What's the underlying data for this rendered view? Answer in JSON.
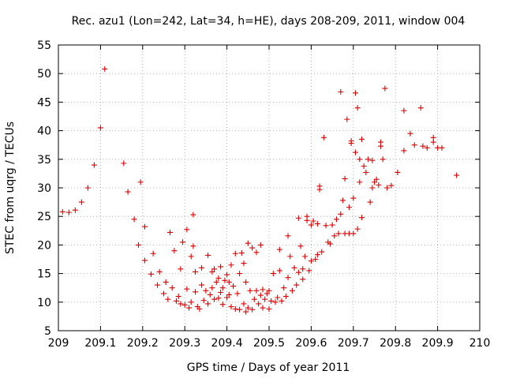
{
  "chart_data": {
    "type": "scatter",
    "title": "Rec. azu1 (Lon=242, Lat=34, h=HE), days 208-209, 2011, window 004",
    "xlabel": "GPS time / Days of year 2011",
    "ylabel": "STEC from uqrg / TECUs",
    "xlim": [
      209,
      210
    ],
    "ylim": [
      5,
      55
    ],
    "xticks": [
      209,
      209.1,
      209.2,
      209.3,
      209.4,
      209.5,
      209.6,
      209.7,
      209.8,
      209.9,
      210
    ],
    "xtick_labels": [
      "209",
      "209.1",
      "209.2",
      "209.3",
      "209.4",
      "209.5",
      "209.6",
      "209.7",
      "209.8",
      "209.9",
      "210"
    ],
    "yticks": [
      5,
      10,
      15,
      20,
      25,
      30,
      35,
      40,
      45,
      50,
      55
    ],
    "ytick_labels": [
      "5",
      "10",
      "15",
      "20",
      "25",
      "30",
      "35",
      "40",
      "45",
      "50",
      "55"
    ],
    "grid": true,
    "marker": "+",
    "color": "#dd0000",
    "series": [
      {
        "points": [
          [
            209.01,
            25.8
          ],
          [
            209.025,
            25.7
          ],
          [
            209.04,
            26.1
          ],
          [
            209.055,
            27.5
          ],
          [
            209.07,
            30.0
          ],
          [
            209.085,
            34.0
          ],
          [
            209.1,
            40.5
          ],
          [
            209.11,
            50.8
          ],
          [
            209.155,
            34.3
          ],
          [
            209.165,
            29.3
          ],
          [
            209.18,
            24.5
          ],
          [
            209.19,
            20.0
          ],
          [
            209.195,
            31.0
          ],
          [
            209.205,
            17.3
          ],
          [
            209.205,
            23.2
          ],
          [
            209.22,
            14.9
          ],
          [
            209.225,
            18.5
          ],
          [
            209.235,
            13.0
          ],
          [
            209.24,
            15.3
          ],
          [
            209.25,
            11.5
          ],
          [
            209.255,
            13.5
          ],
          [
            209.26,
            10.5
          ],
          [
            209.265,
            22.2
          ],
          [
            209.27,
            12.5
          ],
          [
            209.275,
            19.0
          ],
          [
            209.28,
            10.2
          ],
          [
            209.285,
            11.0
          ],
          [
            209.29,
            15.8
          ],
          [
            209.29,
            9.7
          ],
          [
            209.295,
            20.5
          ],
          [
            209.3,
            9.5
          ],
          [
            209.305,
            12.3
          ],
          [
            209.305,
            22.7
          ],
          [
            209.31,
            9.0
          ],
          [
            209.315,
            10.0
          ],
          [
            209.315,
            18.0
          ],
          [
            209.32,
            19.8
          ],
          [
            209.32,
            25.3
          ],
          [
            209.325,
            11.8
          ],
          [
            209.325,
            15.3
          ],
          [
            209.33,
            9.2
          ],
          [
            209.335,
            8.8
          ],
          [
            209.34,
            13.0
          ],
          [
            209.34,
            16.0
          ],
          [
            209.345,
            10.3
          ],
          [
            209.35,
            12.0
          ],
          [
            209.355,
            9.7
          ],
          [
            209.355,
            18.2
          ],
          [
            209.36,
            11.3
          ],
          [
            209.365,
            12.5
          ],
          [
            209.365,
            15.3
          ],
          [
            209.37,
            10.5
          ],
          [
            209.37,
            15.8
          ],
          [
            209.375,
            13.5
          ],
          [
            209.38,
            10.7
          ],
          [
            209.38,
            14.2
          ],
          [
            209.385,
            11.7
          ],
          [
            209.385,
            16.2
          ],
          [
            209.39,
            9.6
          ],
          [
            209.39,
            12.5
          ],
          [
            209.395,
            13.8
          ],
          [
            209.4,
            10.8
          ],
          [
            209.4,
            14.8
          ],
          [
            209.405,
            11.3
          ],
          [
            209.405,
            13.5
          ],
          [
            209.41,
            9.2
          ],
          [
            209.41,
            16.5
          ],
          [
            209.415,
            12.8
          ],
          [
            209.42,
            8.8
          ],
          [
            209.42,
            18.5
          ],
          [
            209.425,
            11.5
          ],
          [
            209.43,
            15.0
          ],
          [
            209.43,
            8.7
          ],
          [
            209.435,
            18.6
          ],
          [
            209.44,
            16.8
          ],
          [
            209.44,
            9.7
          ],
          [
            209.445,
            13.5
          ],
          [
            209.445,
            8.3
          ],
          [
            209.45,
            20.3
          ],
          [
            209.45,
            9.0
          ],
          [
            209.455,
            12.0
          ],
          [
            209.46,
            8.7
          ],
          [
            209.46,
            19.5
          ],
          [
            209.465,
            10.5
          ],
          [
            209.47,
            12.0
          ],
          [
            209.47,
            18.7
          ],
          [
            209.475,
            9.7
          ],
          [
            209.48,
            11.2
          ],
          [
            209.48,
            20.0
          ],
          [
            209.485,
            9.0
          ],
          [
            209.485,
            12.2
          ],
          [
            209.49,
            10.5
          ],
          [
            209.495,
            11.5
          ],
          [
            209.5,
            8.8
          ],
          [
            209.5,
            12.0
          ],
          [
            209.505,
            10.2
          ],
          [
            209.51,
            15.0
          ],
          [
            209.515,
            10.0
          ],
          [
            209.52,
            10.8
          ],
          [
            209.525,
            15.5
          ],
          [
            209.525,
            19.2
          ],
          [
            209.53,
            10.2
          ],
          [
            209.535,
            12.5
          ],
          [
            209.54,
            11.0
          ],
          [
            209.545,
            14.3
          ],
          [
            209.545,
            21.6
          ],
          [
            209.55,
            18.0
          ],
          [
            209.555,
            12.0
          ],
          [
            209.56,
            16.0
          ],
          [
            209.565,
            13.0
          ],
          [
            209.57,
            15.2
          ],
          [
            209.57,
            24.7
          ],
          [
            209.575,
            19.8
          ],
          [
            209.58,
            14.0
          ],
          [
            209.58,
            15.8
          ],
          [
            209.585,
            18.0
          ],
          [
            209.59,
            25.0
          ],
          [
            209.59,
            24.3
          ],
          [
            209.595,
            15.5
          ],
          [
            209.6,
            17.2
          ],
          [
            209.6,
            23.5
          ],
          [
            209.605,
            24.2
          ],
          [
            209.61,
            17.5
          ],
          [
            209.615,
            18.3
          ],
          [
            209.615,
            23.7
          ],
          [
            209.62,
            30.3
          ],
          [
            209.62,
            29.7
          ],
          [
            209.625,
            18.8
          ],
          [
            209.63,
            38.8
          ],
          [
            209.635,
            23.4
          ],
          [
            209.64,
            20.5
          ],
          [
            209.645,
            20.2
          ],
          [
            209.65,
            23.5
          ],
          [
            209.655,
            21.6
          ],
          [
            209.66,
            24.5
          ],
          [
            209.665,
            22.0
          ],
          [
            209.67,
            46.8
          ],
          [
            209.67,
            25.4
          ],
          [
            209.675,
            27.8
          ],
          [
            209.68,
            22.0
          ],
          [
            209.68,
            31.6
          ],
          [
            209.685,
            42.0
          ],
          [
            209.69,
            26.6
          ],
          [
            209.69,
            22.0
          ],
          [
            209.695,
            37.8
          ],
          [
            209.695,
            38.2
          ],
          [
            209.7,
            22.0
          ],
          [
            209.7,
            28.2
          ],
          [
            209.705,
            36.2
          ],
          [
            209.705,
            46.6
          ],
          [
            209.71,
            44.0
          ],
          [
            209.71,
            22.8
          ],
          [
            209.715,
            31.0
          ],
          [
            209.715,
            35.0
          ],
          [
            209.72,
            24.8
          ],
          [
            209.72,
            38.5
          ],
          [
            209.725,
            33.8
          ],
          [
            209.73,
            32.7
          ],
          [
            209.735,
            35.0
          ],
          [
            209.74,
            27.5
          ],
          [
            209.745,
            30.0
          ],
          [
            209.745,
            34.8
          ],
          [
            209.75,
            31.0
          ],
          [
            209.755,
            31.5
          ],
          [
            209.76,
            30.5
          ],
          [
            209.765,
            38.0
          ],
          [
            209.765,
            37.3
          ],
          [
            209.77,
            35.0
          ],
          [
            209.775,
            47.4
          ],
          [
            209.78,
            30.0
          ],
          [
            209.79,
            30.4
          ],
          [
            209.805,
            32.7
          ],
          [
            209.82,
            43.5
          ],
          [
            209.82,
            36.5
          ],
          [
            209.835,
            39.5
          ],
          [
            209.845,
            37.5
          ],
          [
            209.86,
            44.0
          ],
          [
            209.865,
            37.3
          ],
          [
            209.875,
            37.0
          ],
          [
            209.89,
            38.8
          ],
          [
            209.89,
            38.0
          ],
          [
            209.9,
            37.0
          ],
          [
            209.91,
            37.0
          ],
          [
            209.945,
            32.2
          ]
        ]
      }
    ]
  }
}
